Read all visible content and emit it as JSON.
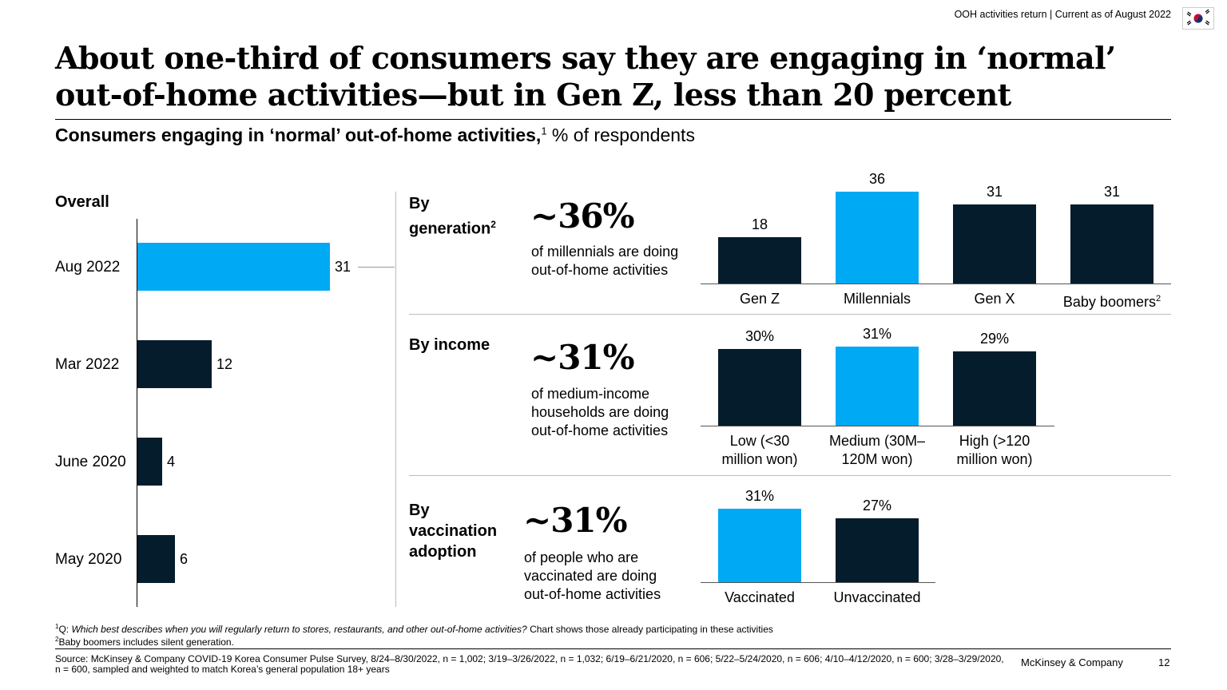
{
  "header": {
    "tagline": "OOH activities return | Current as of August 2022",
    "flag": "south-korea-flag",
    "title": "About one-third of consumers say they are engaging in ‘normal’ out-of-home activities—but in Gen Z, less than 20 percent",
    "subtitle_bold": "Consumers engaging in ‘normal’ out-of-home activities,",
    "subtitle_sup": "1",
    "subtitle_rest": " % of respondents"
  },
  "colors": {
    "dark": "#051c2c",
    "accent": "#00a9f4"
  },
  "chart_data": [
    {
      "type": "bar",
      "orientation": "horizontal",
      "title": "Overall",
      "categories": [
        "Aug 2022",
        "Mar 2022",
        "June 2020",
        "May 2020"
      ],
      "values": [
        31,
        12,
        4,
        6
      ],
      "highlight": "Aug 2022",
      "xlim": [
        0,
        31
      ]
    },
    {
      "type": "bar",
      "title": "By generation",
      "title_line1": "By",
      "title_line2": "generation",
      "title_sup": "2",
      "headline": "~36%",
      "headline_desc": "of millennials are doing out-of-home activities",
      "categories": [
        "Gen Z",
        "Millennials",
        "Gen X",
        "Baby boomers"
      ],
      "category_sup": [
        "",
        "",
        "",
        "2"
      ],
      "values": [
        18,
        36,
        31,
        31
      ],
      "value_labels": [
        "18",
        "36",
        "31",
        "31"
      ],
      "highlight": "Millennials",
      "ylim": [
        0,
        36
      ]
    },
    {
      "type": "bar",
      "title": "By income",
      "headline": "~31%",
      "headline_desc": "of medium-income households are doing out-of-home activities",
      "categories": [
        "Low (<30 million won)",
        "Medium (30M–120M won)",
        "High (>120 million won)"
      ],
      "category_lines": [
        [
          "Low (<30",
          "million won)"
        ],
        [
          "Medium (30M–",
          "120M won)"
        ],
        [
          "High (>120",
          "million won)"
        ]
      ],
      "values": [
        30,
        31,
        29
      ],
      "value_labels": [
        "30%",
        "31%",
        "29%"
      ],
      "highlight": "Medium (30M–120M won)",
      "ylim": [
        0,
        31
      ]
    },
    {
      "type": "bar",
      "title": "By vaccination adoption",
      "title_lines": [
        "By",
        "vaccination",
        "adoption"
      ],
      "headline": "~31%",
      "headline_desc": "of people who are vaccinated are doing out-of-home activities",
      "categories": [
        "Vaccinated",
        "Unvaccinated"
      ],
      "values": [
        31,
        27
      ],
      "value_labels": [
        "31%",
        "27%"
      ],
      "highlight": "Vaccinated",
      "ylim": [
        0,
        31
      ]
    }
  ],
  "footnotes": {
    "note1_sup": "1",
    "note1_prefix": "Q: ",
    "note1_italic": "Which best describes when you will regularly return to stores, restaurants, and other out-of-home activities?",
    "note1_rest": " Chart shows those already participating in these activities",
    "note2_sup": "2",
    "note2": "Baby boomers includes silent generation.",
    "source": "Source: McKinsey & Company COVID-19 Korea Consumer Pulse Survey, 8/24–8/30/2022, n = 1,002; 3/19–3/26/2022, n = 1,032; 6/19–6/21/2020, n = 606; 5/22–5/24/2020, n = 606; 4/10–4/12/2020, n = 600; 3/28–3/29/2020, n = 600, sampled and weighted to match Korea’s general population 18+ years",
    "brand": "McKinsey & Company",
    "page_number": "12"
  }
}
